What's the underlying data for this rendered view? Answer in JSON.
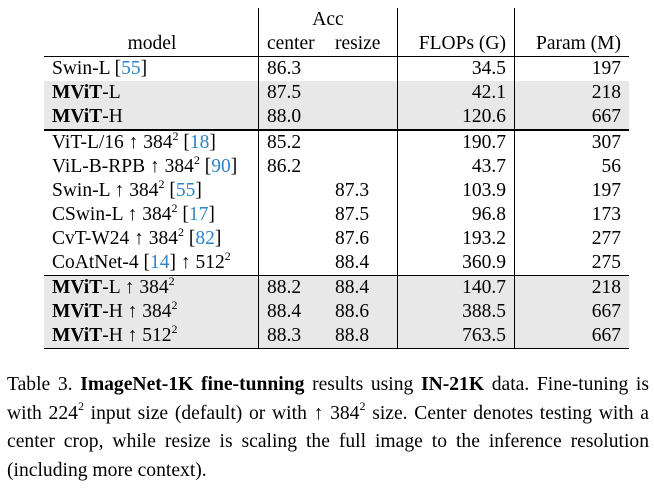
{
  "table": {
    "header": {
      "model": "model",
      "acc": "Acc",
      "center": "center",
      "resize": "resize",
      "flops": "FLOPs (G)",
      "param": "Param (M)"
    },
    "rows": [
      {
        "name": "Swin-L",
        "name_bold": false,
        "res": "",
        "ref": "55",
        "center": "86.3",
        "center_bold": false,
        "resize": "",
        "resize_bold": false,
        "flops": "34.5",
        "param": "197"
      },
      {
        "name": "MViT",
        "name_bold": true,
        "suffix": "-L",
        "res": "",
        "ref": "",
        "center": "87.5",
        "center_bold": false,
        "resize": "",
        "resize_bold": false,
        "flops": "42.1",
        "param": "218"
      },
      {
        "name": "MViT",
        "name_bold": true,
        "suffix": "-H",
        "res": "",
        "ref": "",
        "center": "88.0",
        "center_bold": true,
        "resize": "",
        "resize_bold": false,
        "flops": "120.6",
        "param": "667"
      },
      {
        "name": "ViT-L/16",
        "name_bold": false,
        "res": "384",
        "ref": "18",
        "center": "85.2",
        "center_bold": false,
        "resize": "",
        "resize_bold": false,
        "flops": "190.7",
        "param": "307"
      },
      {
        "name": "ViL-B-RPB",
        "name_bold": false,
        "res": "384",
        "ref": "90",
        "center": "86.2",
        "center_bold": false,
        "resize": "",
        "resize_bold": false,
        "flops": "43.7",
        "param": "56"
      },
      {
        "name": "Swin-L",
        "name_bold": false,
        "res": "384",
        "ref": "55",
        "center": "",
        "center_bold": false,
        "resize": "87.3",
        "resize_bold": false,
        "flops": "103.9",
        "param": "197"
      },
      {
        "name": "CSwin-L",
        "name_bold": false,
        "res": "384",
        "ref": "17",
        "center": "",
        "center_bold": false,
        "resize": "87.5",
        "resize_bold": false,
        "flops": "96.8",
        "param": "173"
      },
      {
        "name": "CvT-W24",
        "name_bold": false,
        "res": "384",
        "ref": "82",
        "center": "",
        "center_bold": false,
        "resize": "87.6",
        "resize_bold": false,
        "flops": "193.2",
        "param": "277"
      },
      {
        "name": "CoAtNet-4",
        "name_bold": false,
        "res": "512",
        "ref": "14",
        "ref_before_res": true,
        "center": "",
        "center_bold": false,
        "resize": "88.4",
        "resize_bold": false,
        "flops": "360.9",
        "param": "275"
      },
      {
        "name": "MViT",
        "name_bold": true,
        "suffix": "-L",
        "res": "384",
        "ref": "",
        "center": "88.2",
        "center_bold": false,
        "resize": "88.4",
        "resize_bold": false,
        "flops": "140.7",
        "param": "218"
      },
      {
        "name": "MViT",
        "name_bold": true,
        "suffix": "-H",
        "res": "384",
        "ref": "",
        "center": "88.4",
        "center_bold": false,
        "resize": "88.6",
        "resize_bold": false,
        "flops": "388.5",
        "param": "667"
      },
      {
        "name": "MViT",
        "name_bold": true,
        "suffix": "-H",
        "res": "512",
        "ref": "",
        "center": "88.3",
        "center_bold": false,
        "resize": "88.8",
        "resize_bold": true,
        "flops": "763.5",
        "param": "667"
      }
    ]
  },
  "caption": {
    "label": "Table 3.",
    "bold1": "ImageNet-1K fine-tunning",
    "text1": "results using",
    "bold2": "IN-21K",
    "text2": "data. Fine-tuning is with 224",
    "sup1": "2",
    "text3": "input size (default) or with ↑ 384",
    "sup2": "2",
    "text4": "size. Center denotes testing with a center crop, while resize is scaling the full image to the inference resolution (including more context)."
  },
  "colors": {
    "ref": "#2b84c8",
    "row_shade": "#e8e8e8"
  }
}
